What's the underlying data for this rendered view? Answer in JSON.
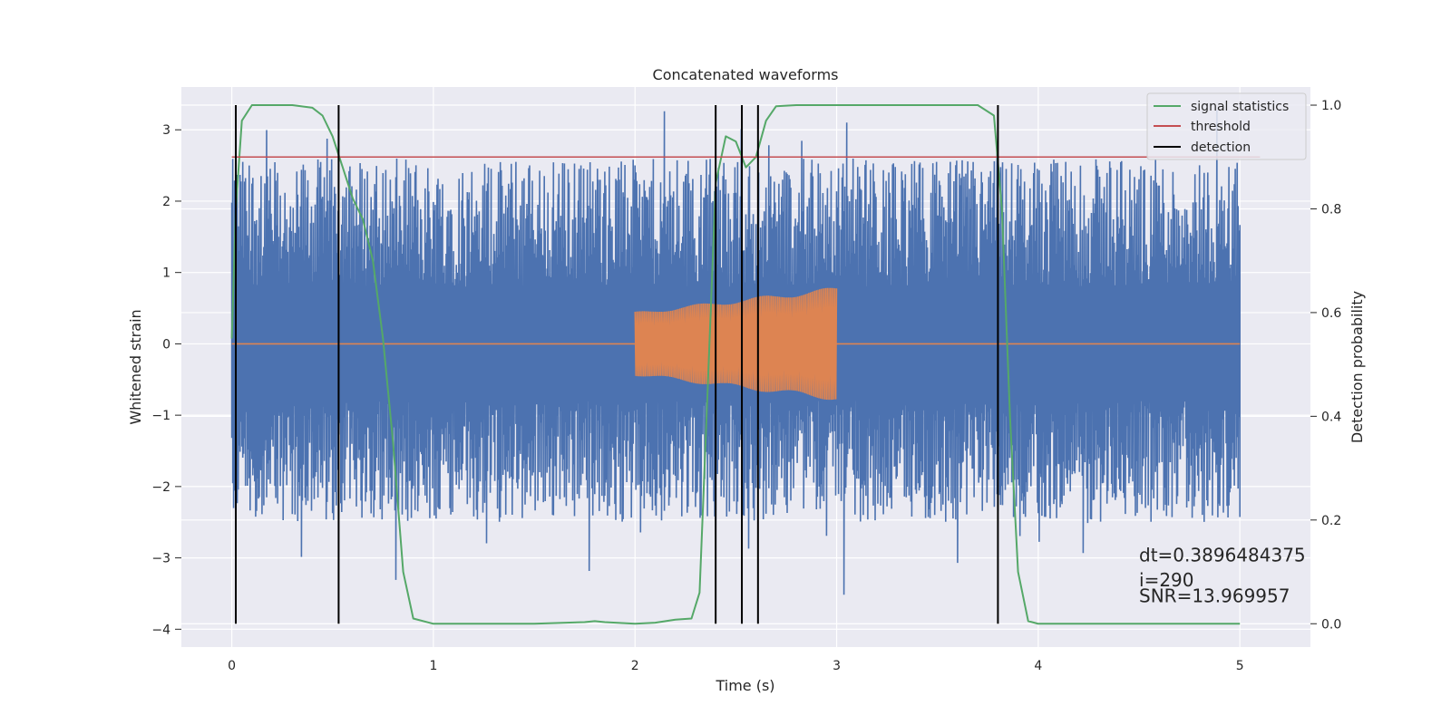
{
  "chart_data": {
    "type": "line",
    "title": "Concatenated waveforms",
    "xlabel": "Time (s)",
    "ylabel": "Whitened strain",
    "y2label": "Detection probability",
    "xlim": [
      -0.25,
      5.35
    ],
    "ylim": [
      -4.25,
      3.6
    ],
    "y2lim": [
      -0.045,
      1.035
    ],
    "xticks": [
      0,
      1,
      2,
      3,
      4,
      5
    ],
    "xtick_labels": [
      "0",
      "1",
      "2",
      "3",
      "4",
      "5"
    ],
    "yticks": [
      3,
      2,
      1,
      0,
      -1,
      -2,
      -3,
      -4
    ],
    "ytick_labels": [
      "3",
      "2",
      "1",
      "0",
      "−1",
      "−2",
      "−3",
      "−4"
    ],
    "y2ticks": [
      1.0,
      0.8,
      0.6,
      0.4,
      0.2,
      0.0
    ],
    "y2tick_labels": [
      "1.0",
      "0.8",
      "0.6",
      "0.4",
      "0.2",
      "0.0"
    ],
    "grid": true,
    "legend_position": "top-right",
    "colors": {
      "strain": "#4c72b0",
      "injection": "#dd8452",
      "signal_statistics": "#55a868",
      "threshold": "#c44e52",
      "detection": "#000000",
      "background": "#eaeaf2",
      "grid": "#ffffff"
    },
    "series": [
      {
        "name": "signal statistics",
        "axis": "right",
        "x": [
          0,
          0.02,
          0.05,
          0.1,
          0.2,
          0.3,
          0.4,
          0.45,
          0.5,
          0.55,
          0.6,
          0.65,
          0.7,
          0.75,
          0.8,
          0.85,
          0.9,
          1.0,
          1.5,
          1.75,
          1.8,
          1.85,
          2.0,
          2.1,
          2.2,
          2.28,
          2.32,
          2.36,
          2.4,
          2.45,
          2.5,
          2.55,
          2.6,
          2.65,
          2.7,
          2.8,
          3.0,
          3.5,
          3.7,
          3.78,
          3.82,
          3.86,
          3.9,
          3.95,
          4.0,
          4.5,
          5.0
        ],
        "y": [
          0.55,
          0.8,
          0.97,
          1.0,
          1.0,
          1.0,
          0.995,
          0.98,
          0.94,
          0.88,
          0.82,
          0.78,
          0.7,
          0.55,
          0.35,
          0.1,
          0.01,
          0.0,
          0.0,
          0.003,
          0.005,
          0.003,
          0.0,
          0.002,
          0.008,
          0.01,
          0.06,
          0.45,
          0.85,
          0.94,
          0.93,
          0.88,
          0.9,
          0.97,
          0.998,
          1.0,
          1.0,
          1.0,
          1.0,
          0.98,
          0.8,
          0.4,
          0.1,
          0.005,
          0.0,
          0.0,
          0.0
        ]
      },
      {
        "name": "threshold",
        "axis": "right",
        "x": [
          0,
          5.1
        ],
        "y": [
          0.9,
          0.9
        ]
      },
      {
        "name": "detection",
        "axis": "right",
        "type": "vlines",
        "x": [
          0.02,
          0.53,
          2.4,
          2.53,
          2.61,
          3.8
        ],
        "y_range": [
          0.0,
          1.0
        ]
      }
    ],
    "strain": {
      "axis": "left",
      "x_range": [
        0,
        5
      ],
      "envelope_y": [
        -2.5,
        2.6
      ],
      "spike_min": -3.85,
      "spike_max": 3.4
    },
    "injection": {
      "axis": "left",
      "x_range": [
        2.0,
        3.0
      ],
      "amplitude_start": 0.45,
      "amplitude_end": 0.8
    },
    "annotations": [
      {
        "text": "dt=0.3896484375",
        "x": 4.5,
        "y": -3.05
      },
      {
        "text": " i=290",
        "x": 4.5,
        "y": -3.4
      },
      {
        "text": "SNR=13.969957",
        "x": 4.5,
        "y": -3.62
      }
    ]
  }
}
